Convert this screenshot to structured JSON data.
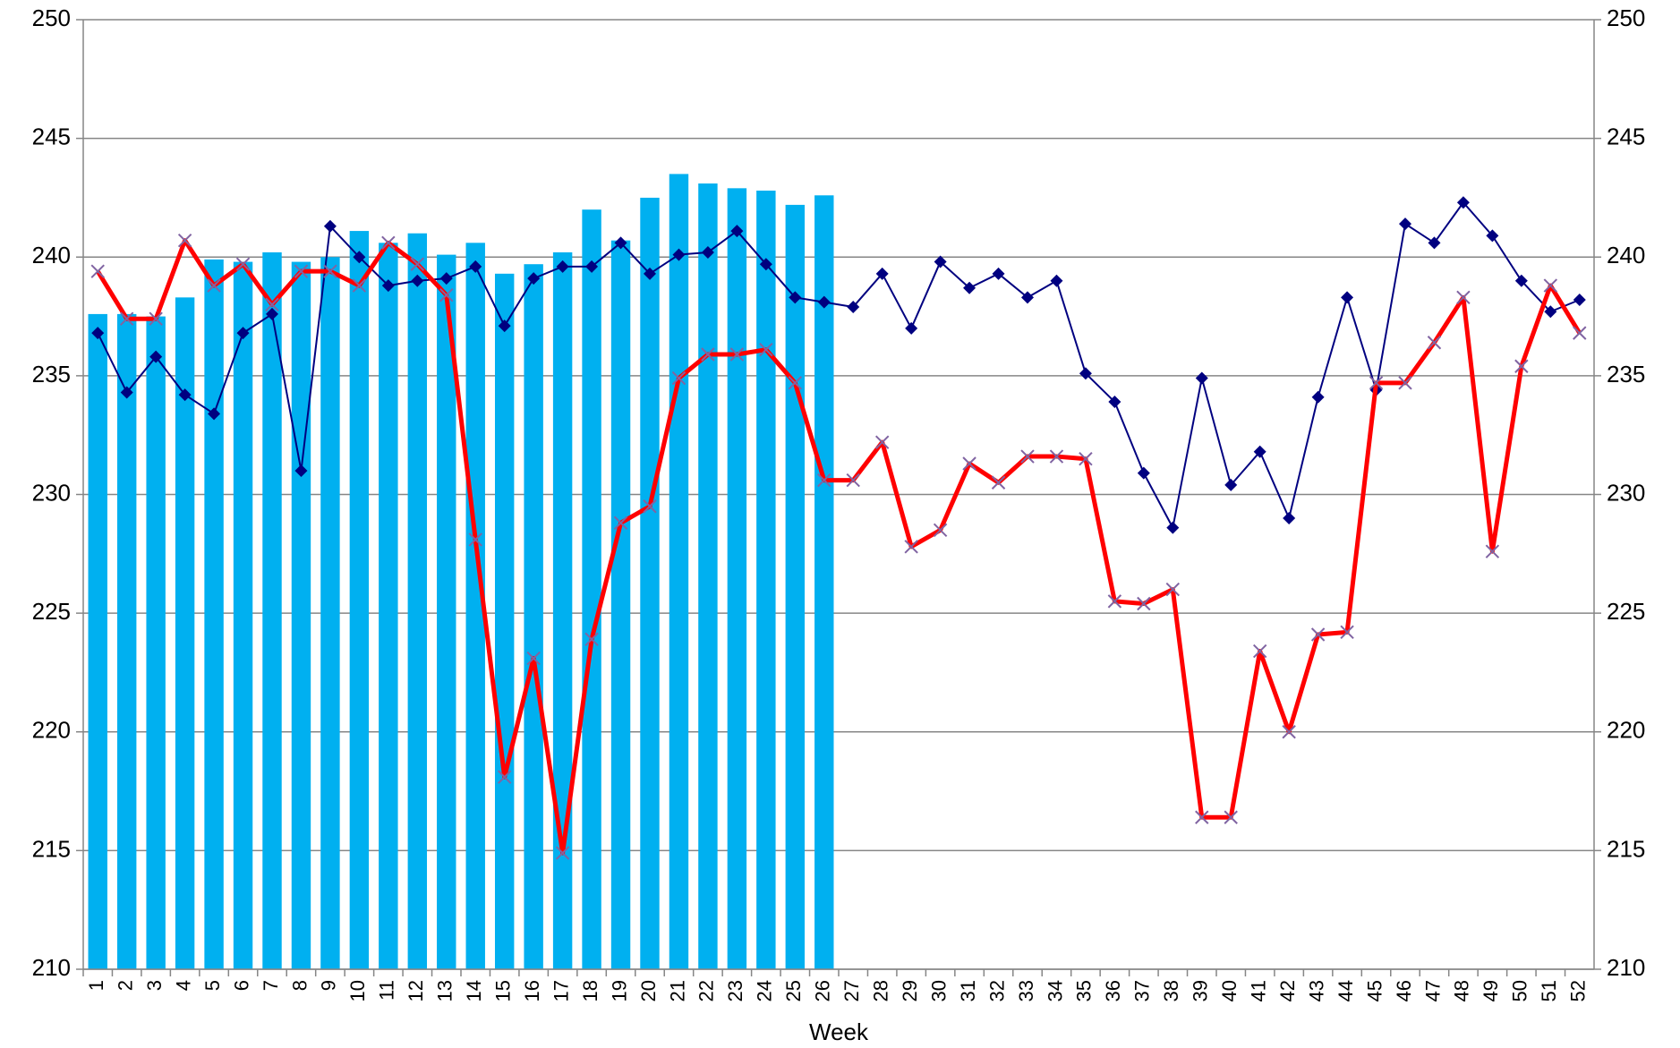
{
  "chart_data": {
    "type": "combo",
    "x_label": "Week",
    "categories": [
      "1",
      "2",
      "3",
      "4",
      "5",
      "6",
      "7",
      "8",
      "9",
      "10",
      "11",
      "12",
      "13",
      "14",
      "15",
      "16",
      "17",
      "18",
      "19",
      "20",
      "21",
      "22",
      "23",
      "24",
      "25",
      "26",
      "27",
      "28",
      "29",
      "30",
      "31",
      "32",
      "33",
      "34",
      "35",
      "36",
      "37",
      "38",
      "39",
      "40",
      "41",
      "42",
      "43",
      "44",
      "45",
      "46",
      "47",
      "48",
      "49",
      "50",
      "51",
      "52"
    ],
    "series": [
      {
        "type": "bar",
        "color": "#00b0f0",
        "values": [
          237.6,
          237.6,
          237.5,
          238.3,
          239.9,
          239.8,
          240.2,
          239.8,
          240.0,
          241.1,
          240.6,
          241.0,
          240.1,
          240.6,
          239.3,
          239.7,
          240.2,
          242.0,
          240.7,
          242.5,
          243.5,
          243.1,
          242.9,
          242.8,
          242.2,
          242.6,
          null,
          null,
          null,
          null,
          null,
          null,
          null,
          null,
          null,
          null,
          null,
          null,
          null,
          null,
          null,
          null,
          null,
          null,
          null,
          null,
          null,
          null,
          null,
          null,
          null,
          null
        ]
      },
      {
        "type": "line",
        "color": "#000080",
        "marker": "diamond",
        "marker_color": "#000080",
        "values": [
          236.8,
          234.3,
          235.8,
          234.2,
          233.4,
          236.8,
          237.6,
          231.0,
          241.3,
          240.0,
          238.8,
          239.0,
          239.1,
          239.6,
          237.1,
          239.1,
          239.6,
          239.6,
          240.6,
          239.3,
          240.1,
          240.2,
          241.1,
          239.7,
          238.3,
          238.1,
          237.9,
          239.3,
          237.0,
          239.8,
          238.7,
          239.3,
          238.3,
          239.0,
          235.1,
          233.9,
          230.9,
          228.6,
          234.9,
          230.4,
          231.8,
          229.0,
          234.1,
          238.3,
          234.4,
          241.4,
          240.6,
          242.3,
          240.9,
          239.0,
          237.7,
          238.2
        ]
      },
      {
        "type": "line",
        "color": "#ff0000",
        "marker": "x",
        "marker_color": "#8064a2",
        "values": [
          239.4,
          237.4,
          237.4,
          240.7,
          238.8,
          239.7,
          238.0,
          239.4,
          239.4,
          238.8,
          240.6,
          239.7,
          238.4,
          228.1,
          218.1,
          223.1,
          214.9,
          223.9,
          228.8,
          229.5,
          234.9,
          235.9,
          235.9,
          236.1,
          234.7,
          230.6,
          230.6,
          232.2,
          227.8,
          228.5,
          231.3,
          230.5,
          231.6,
          231.6,
          231.5,
          225.5,
          225.4,
          226.0,
          216.4,
          216.4,
          223.4,
          220.0,
          224.1,
          224.2,
          234.7,
          234.7,
          236.4,
          238.3,
          227.6,
          235.4,
          238.8,
          236.8
        ]
      }
    ],
    "ylim": [
      210,
      250
    ],
    "yticks": [
      210,
      215,
      220,
      225,
      230,
      235,
      240,
      245,
      250
    ],
    "y2lim": [
      210,
      250
    ],
    "y2ticks": [
      210,
      215,
      220,
      225,
      230,
      235,
      240,
      245,
      250
    ],
    "grid": true
  }
}
